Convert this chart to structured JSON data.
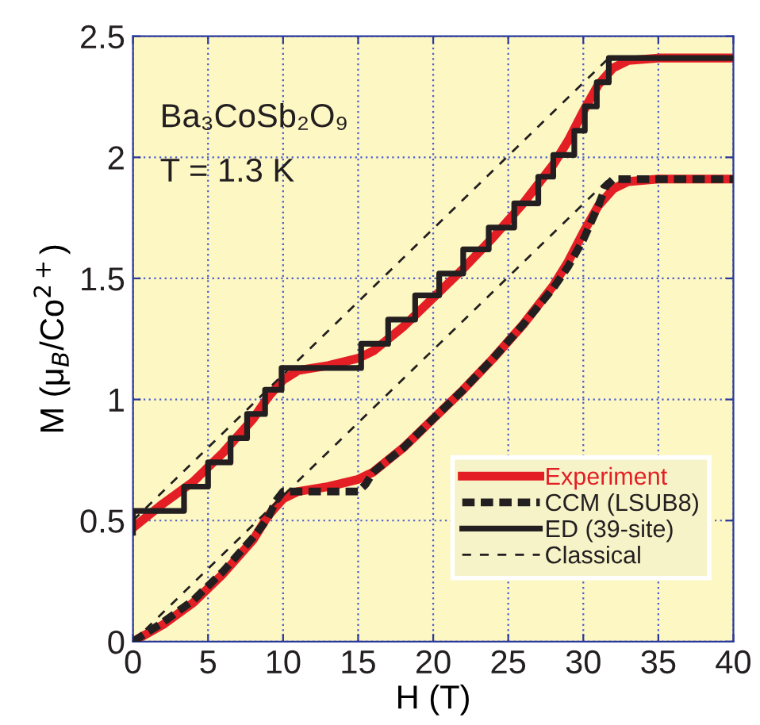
{
  "chart_data": {
    "type": "line",
    "xlabel": "H (T)",
    "ylabel": "M (μ$_{B}$/Co$^{2+}$)",
    "annotations": [
      "Ba₃CoSb₂O₉",
      "T = 1.3 K"
    ],
    "xlim": [
      0,
      40
    ],
    "ylim": [
      0,
      2.5
    ],
    "xticks": [
      0,
      5,
      10,
      15,
      20,
      25,
      30,
      35,
      40
    ],
    "yticks": [
      0,
      0.5,
      1,
      1.5,
      2,
      2.5
    ],
    "grid": true,
    "legend": "bottom right",
    "marker": "none",
    "series": [
      {
        "name": "Experiment",
        "color": "#e31e24",
        "line_style": "solid",
        "x": [
          0,
          2,
          4,
          6,
          8,
          9,
          10,
          11,
          13,
          15,
          16,
          18,
          20,
          22,
          24,
          26,
          28,
          29,
          30,
          31,
          32,
          33,
          35,
          40
        ],
        "values": [
          0,
          0.07,
          0.16,
          0.28,
          0.42,
          0.52,
          0.59,
          0.62,
          0.64,
          0.67,
          0.7,
          0.8,
          0.92,
          1.04,
          1.17,
          1.31,
          1.47,
          1.57,
          1.69,
          1.8,
          1.87,
          1.9,
          1.91,
          1.91
        ]
      },
      {
        "color": "#e31e24",
        "line_style": "solid",
        "x": [
          0,
          2,
          4,
          6,
          8,
          9,
          10,
          11,
          13,
          15,
          16,
          18,
          20,
          22,
          24,
          26,
          28,
          29,
          30,
          31,
          32,
          33,
          35,
          40
        ],
        "values": [
          0.47,
          0.57,
          0.66,
          0.78,
          0.92,
          1.01,
          1.08,
          1.12,
          1.14,
          1.17,
          1.2,
          1.3,
          1.42,
          1.54,
          1.67,
          1.81,
          1.97,
          2.07,
          2.19,
          2.3,
          2.37,
          2.4,
          2.41,
          2.41
        ]
      },
      {
        "name": "CCM (LSUB8)",
        "color": "#231f20",
        "line_style": "dashed",
        "x": [
          0,
          0.5,
          2,
          4,
          6,
          8,
          9,
          9.5,
          10,
          15,
          15.5,
          16,
          18,
          20,
          22,
          24,
          26,
          28,
          29,
          30,
          31,
          31.5,
          32,
          40
        ],
        "values": [
          0,
          0.02,
          0.08,
          0.17,
          0.29,
          0.43,
          0.51,
          0.58,
          0.62,
          0.62,
          0.65,
          0.7,
          0.8,
          0.92,
          1.04,
          1.17,
          1.31,
          1.46,
          1.55,
          1.66,
          1.8,
          1.88,
          1.91,
          1.91
        ]
      },
      {
        "name": "ED (39-site)",
        "type": "step",
        "color": "#231f20",
        "line_style": "solid",
        "x": [
          0,
          0,
          3.4,
          5.0,
          6.5,
          7.6,
          8.8,
          9.9,
          15.2,
          17.0,
          18.8,
          20.4,
          22.0,
          23.7,
          25.4,
          27.0,
          28.0,
          29.4,
          30.1,
          30.9,
          31.7,
          40
        ],
        "values": [
          0.45,
          0.54,
          0.64,
          0.74,
          0.84,
          0.94,
          1.04,
          1.13,
          1.23,
          1.33,
          1.43,
          1.52,
          1.62,
          1.71,
          1.81,
          1.92,
          2.01,
          2.11,
          2.21,
          2.31,
          2.41,
          2.41
        ]
      },
      {
        "name": "Classical",
        "color": "#231f20",
        "line_style": "dotted",
        "x": [
          0,
          31.7
        ],
        "values": [
          0,
          1.91
        ]
      },
      {
        "color": "#231f20",
        "line_style": "dotted",
        "x": [
          0,
          31.7
        ],
        "values": [
          0.5,
          2.41
        ]
      }
    ]
  }
}
